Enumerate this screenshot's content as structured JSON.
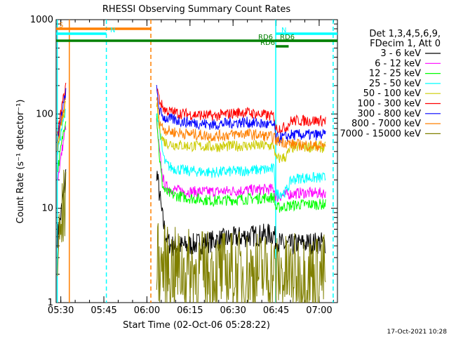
{
  "chart_data": {
    "type": "line",
    "title": "RHESSI Observing Summary Count Rates",
    "xlabel": "Start Time (02-Oct-06 05:28:22)",
    "ylabel": "Count Rate (s⁻¹ detector⁻¹)",
    "yscale": "log",
    "ylim": [
      1,
      1000
    ],
    "xlim_minutes_after_start": [
      0,
      98
    ],
    "x_tick_labels": [
      "05:30",
      "05:45",
      "06:00",
      "06:15",
      "06:30",
      "06:45",
      "07:00"
    ],
    "x_tick_minutes": [
      1.63,
      16.63,
      31.63,
      46.63,
      61.63,
      76.63,
      91.63
    ],
    "y_tick_labels": [
      "1",
      "10",
      "100",
      "1000"
    ],
    "y_tick_values": [
      1,
      10,
      100,
      1000
    ],
    "legend_header": [
      "Det 1,3,4,5,6,9,",
      "FDecim 1, Att 0"
    ],
    "legend_position": "right",
    "series": [
      {
        "name": "3 - 6 keV",
        "color": "#000000",
        "x": [
          0.5,
          2,
          3.5,
          35,
          36,
          37,
          38,
          39,
          40,
          45,
          55,
          65,
          75,
          76,
          76.5,
          80,
          85,
          90,
          94
        ],
        "y": [
          5,
          10,
          25,
          25,
          14,
          8,
          5.5,
          4.5,
          4,
          4,
          4.5,
          5,
          5.3,
          5.3,
          4.5,
          4,
          4.2,
          4.3,
          4.3
        ]
      },
      {
        "name": "6 - 12 keV",
        "color": "#ff00ff",
        "x": [
          0.5,
          2,
          3.5,
          35,
          36,
          37,
          38,
          40,
          45,
          55,
          65,
          75,
          76,
          76.5,
          80,
          85,
          90,
          94
        ],
        "y": [
          20,
          40,
          80,
          80,
          40,
          22,
          17,
          16,
          15,
          15,
          15.5,
          16,
          16,
          13,
          14,
          14.5,
          14.5,
          14.5
        ]
      },
      {
        "name": "12 - 25 keV",
        "color": "#00ff00",
        "x": [
          0.5,
          2,
          3.5,
          35,
          36,
          37,
          38,
          40,
          45,
          55,
          65,
          75,
          76,
          76.5,
          80,
          85,
          90,
          94
        ],
        "y": [
          25,
          50,
          100,
          100,
          35,
          18,
          15,
          14,
          13,
          12,
          12.5,
          13,
          13,
          10,
          10.5,
          11,
          11,
          11
        ]
      },
      {
        "name": "25 - 50 keV",
        "color": "#00ffff",
        "x": [
          0.5,
          2,
          3.5,
          35,
          36,
          37,
          38,
          40,
          45,
          55,
          65,
          75,
          76,
          76.5,
          80,
          82,
          85,
          90,
          94
        ],
        "y": [
          40,
          70,
          110,
          110,
          70,
          40,
          30,
          27,
          25,
          24,
          25,
          26,
          26,
          14,
          15,
          20,
          21,
          21,
          21
        ]
      },
      {
        "name": "50 - 100 keV",
        "color": "#cccc00",
        "x": [
          0.5,
          2,
          3.5,
          35,
          36,
          37,
          38,
          40,
          45,
          55,
          65,
          75,
          76,
          76.5,
          80,
          82,
          85,
          90,
          94
        ],
        "y": [
          50,
          80,
          130,
          130,
          70,
          55,
          50,
          48,
          46,
          45,
          46,
          46,
          46,
          33,
          35,
          44,
          45,
          45,
          44
        ]
      },
      {
        "name": "100 - 300 keV",
        "color": "#ff0000",
        "x": [
          0.5,
          2,
          3.5,
          35,
          36,
          37,
          38,
          40,
          45,
          55,
          60,
          65,
          70,
          75,
          76,
          76.5,
          80,
          82,
          85,
          90,
          94
        ],
        "y": [
          60,
          120,
          200,
          200,
          140,
          120,
          110,
          105,
          100,
          95,
          100,
          105,
          100,
          95,
          95,
          70,
          72,
          85,
          85,
          85,
          85
        ]
      },
      {
        "name": "300 - 800 keV",
        "color": "#0000ff",
        "x": [
          0.5,
          2,
          3.5,
          35,
          36,
          37,
          38,
          40,
          45,
          55,
          60,
          65,
          70,
          75,
          76,
          76.5,
          80,
          82,
          85,
          90,
          94
        ],
        "y": [
          50,
          100,
          180,
          180,
          110,
          95,
          90,
          88,
          82,
          77,
          80,
          82,
          80,
          76,
          76,
          55,
          57,
          60,
          60,
          60,
          60
        ]
      },
      {
        "name": "800 - 7000 keV",
        "color": "#ff8000",
        "x": [
          0.5,
          2,
          3.5,
          35,
          36,
          37,
          38,
          40,
          45,
          55,
          60,
          65,
          70,
          75,
          76,
          76.5,
          80,
          82,
          85,
          90,
          94
        ],
        "y": [
          45,
          90,
          150,
          150,
          85,
          72,
          68,
          65,
          62,
          58,
          60,
          62,
          60,
          57,
          57,
          52,
          50,
          48,
          47,
          46,
          46
        ]
      },
      {
        "name": "7000 - 15000 keV",
        "color": "#808000",
        "x": [
          0.5,
          2,
          3.5,
          35,
          36,
          40,
          45,
          55,
          65,
          75,
          76,
          80,
          85,
          90,
          94
        ],
        "y": [
          3,
          7,
          15,
          3,
          2.5,
          2.3,
          2.2,
          2.1,
          2.1,
          2.1,
          2.0,
          1.9,
          2.0,
          2.0,
          2.0
        ]
      }
    ],
    "state_bars": [
      {
        "label": "S",
        "color": "#ff8000",
        "x": [
          0,
          33
        ]
      },
      {
        "label": "N",
        "color": "#00ffff",
        "x": [
          0,
          17.5
        ]
      },
      {
        "label": "N",
        "color": "#00ffff",
        "x": [
          76.5,
          98
        ]
      },
      {
        "label": "RD6",
        "color": "#008000",
        "x": [
          0,
          98
        ]
      },
      {
        "label": "RD6",
        "color": "#008000",
        "x": [
          76.5,
          81
        ]
      },
      {
        "label": "RD6",
        "color": "#008000",
        "x": [
          76.5,
          98
        ]
      }
    ],
    "vertical_markers": [
      {
        "x": 0.4,
        "color": "#00ffff",
        "style": "solid"
      },
      {
        "x": 4.6,
        "color": "#ff8000",
        "style": "solid"
      },
      {
        "x": 17.5,
        "color": "#00ffff",
        "style": "dashed"
      },
      {
        "x": 33,
        "color": "#ff8000",
        "style": "dashed"
      },
      {
        "x": 76.5,
        "color": "#00ffff",
        "style": "solid"
      },
      {
        "x": 96.5,
        "color": "#00ffff",
        "style": "dashed"
      }
    ]
  },
  "footer": {
    "timestamp": "17-Oct-2021 10:28"
  }
}
